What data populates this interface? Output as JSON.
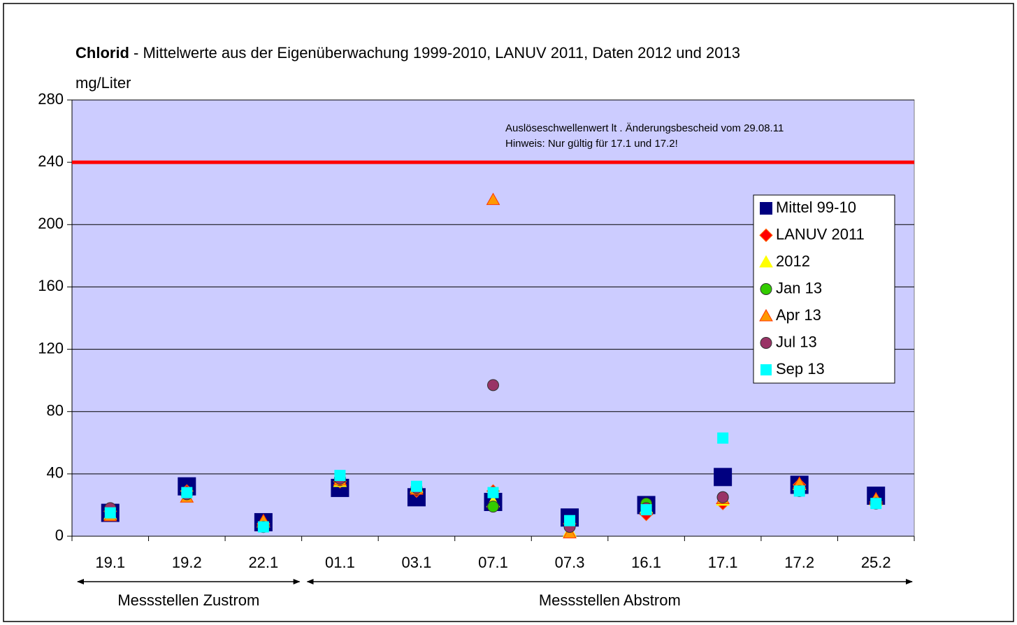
{
  "chart_data": {
    "type": "scatter",
    "title": {
      "bold": "Chlorid",
      "text": "- Mittelwerte aus der Eigenüberwachung 1999-2010, LANUV 2011, Daten 2012 und 2013"
    },
    "ylabel": "mg/Liter",
    "categories": [
      "19.1",
      "19.2",
      "22.1",
      "01.1",
      "03.1",
      "07.1",
      "07.3",
      "16.1",
      "17.1",
      "17.2",
      "25.2"
    ],
    "groups": [
      {
        "label": "Messstellen Zustrom"
      },
      {
        "label": "Messstellen Abstrom"
      }
    ],
    "ylim": [
      0,
      280
    ],
    "yticks": [
      0,
      40,
      80,
      120,
      160,
      200,
      240,
      280
    ],
    "grid": true,
    "background": "#ccccff",
    "threshold": {
      "value": 240,
      "color": "#ff0000",
      "label": [
        "Auslöseschwellenwert lt . Änderungsbescheid vom 29.08.11",
        "Hinweis: Nur gültig für 17.1 und 17.2!"
      ]
    },
    "legend": "right",
    "series": [
      {
        "name": "Mittel 99-10",
        "color": "#000080",
        "marker": "square-large",
        "values": [
          15,
          32,
          9,
          31,
          25,
          22,
          12,
          20,
          38,
          33,
          26
        ]
      },
      {
        "name": "LANUV 2011",
        "color": "#ff0000",
        "marker": "diamond",
        "values": [
          16,
          29,
          8,
          35,
          29,
          29,
          8,
          14,
          21,
          33,
          22
        ]
      },
      {
        "name": "2012",
        "color": "#ffff00",
        "marker": "triangle",
        "values": [
          14,
          25,
          9,
          35,
          31,
          22,
          3,
          18,
          23,
          33,
          23
        ]
      },
      {
        "name": "Jan 13",
        "color": "#33cc00",
        "marker": "circle",
        "values": [
          16,
          27,
          6,
          36,
          30,
          19,
          8,
          21,
          25,
          31,
          22
        ]
      },
      {
        "name": "Apr 13",
        "color": "#ff9900",
        "marker": "triangle",
        "values": [
          13,
          25,
          10,
          36,
          30,
          216,
          2,
          17,
          24,
          34,
          24
        ]
      },
      {
        "name": "Jul 13",
        "color": "#993366",
        "marker": "circle",
        "values": [
          18,
          27,
          6,
          37,
          31,
          97,
          6,
          18,
          25,
          29,
          21
        ]
      },
      {
        "name": "Sep 13",
        "color": "#00ffff",
        "marker": "square",
        "values": [
          15,
          28,
          6,
          39,
          32,
          28,
          10,
          17,
          63,
          29,
          21
        ]
      }
    ]
  }
}
